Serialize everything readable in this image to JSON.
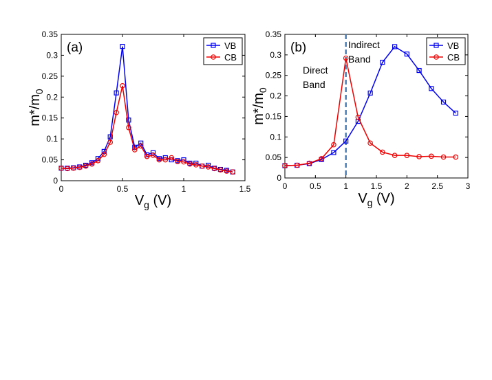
{
  "chart_data": [
    {
      "type": "line",
      "panel_label": "(a)",
      "xlabel": "V",
      "xlabel_sub": "g",
      "xlabel_unit": " (V)",
      "ylabel": "m*/m",
      "ylabel_sub": "0",
      "xlim": [
        0,
        1.5
      ],
      "ylim": [
        0,
        0.35
      ],
      "xticks": [
        0,
        0.5,
        1,
        1.5
      ],
      "xtick_labels": [
        "0",
        "0.5",
        "1",
        "1.5"
      ],
      "yticks": [
        0,
        0.05,
        0.1,
        0.15,
        0.2,
        0.25,
        0.3,
        0.35
      ],
      "ytick_labels": [
        "0",
        "0.05",
        "0.1",
        "0.15",
        "0.2",
        "0.25",
        "0.3",
        "0.35"
      ],
      "legend_position": "top-right",
      "series": [
        {
          "name": "VB",
          "color": "#0000ee",
          "marker": "square",
          "x": [
            0,
            0.05,
            0.1,
            0.15,
            0.2,
            0.25,
            0.3,
            0.35,
            0.4,
            0.45,
            0.5,
            0.55,
            0.6,
            0.65,
            0.7,
            0.75,
            0.8,
            0.85,
            0.9,
            0.95,
            1.0,
            1.05,
            1.1,
            1.15,
            1.2,
            1.25,
            1.3,
            1.35,
            1.4
          ],
          "y": [
            0.03,
            0.03,
            0.031,
            0.033,
            0.037,
            0.043,
            0.053,
            0.07,
            0.105,
            0.21,
            0.321,
            0.145,
            0.08,
            0.09,
            0.062,
            0.067,
            0.053,
            0.055,
            0.05,
            0.048,
            0.05,
            0.042,
            0.042,
            0.035,
            0.037,
            0.03,
            0.027,
            0.025,
            0.021
          ]
        },
        {
          "name": "CB",
          "color": "#ee0000",
          "marker": "circle",
          "x": [
            0,
            0.05,
            0.1,
            0.15,
            0.2,
            0.25,
            0.3,
            0.35,
            0.4,
            0.45,
            0.5,
            0.55,
            0.6,
            0.65,
            0.7,
            0.75,
            0.8,
            0.85,
            0.9,
            0.95,
            1.0,
            1.05,
            1.1,
            1.15,
            1.2,
            1.25,
            1.3,
            1.35,
            1.4
          ],
          "y": [
            0.03,
            0.029,
            0.03,
            0.032,
            0.035,
            0.04,
            0.048,
            0.063,
            0.092,
            0.163,
            0.227,
            0.127,
            0.074,
            0.083,
            0.058,
            0.061,
            0.05,
            0.05,
            0.055,
            0.046,
            0.045,
            0.04,
            0.038,
            0.035,
            0.033,
            0.029,
            0.026,
            0.023,
            0.021
          ]
        }
      ]
    },
    {
      "type": "line",
      "panel_label": "(b)",
      "xlabel": "V",
      "xlabel_sub": "g",
      "xlabel_unit": " (V)",
      "ylabel": "m*/m",
      "ylabel_sub": "0",
      "xlim": [
        0,
        3
      ],
      "ylim": [
        0,
        0.35
      ],
      "xticks": [
        0,
        0.5,
        1,
        1.5,
        2,
        2.5,
        3
      ],
      "xtick_labels": [
        "0",
        "0.5",
        "1",
        "1.5",
        "2",
        "2.5",
        "3"
      ],
      "yticks": [
        0,
        0.05,
        0.1,
        0.15,
        0.2,
        0.25,
        0.3,
        0.35
      ],
      "ytick_labels": [
        "0",
        "0.05",
        "0.1",
        "0.15",
        "0.2",
        "0.25",
        "0.3",
        "0.35"
      ],
      "legend_position": "top-right",
      "vline": {
        "x": 1,
        "color": "#4a7fb5"
      },
      "annotations": [
        {
          "lines": [
            "Direct",
            "Band"
          ]
        },
        {
          "lines": [
            "Indirect",
            "Band"
          ]
        }
      ],
      "series": [
        {
          "name": "VB",
          "color": "#0000ee",
          "marker": "square",
          "x": [
            0,
            0.2,
            0.4,
            0.6,
            0.8,
            1.0,
            1.2,
            1.4,
            1.6,
            1.8,
            2.0,
            2.2,
            2.4,
            2.6,
            2.8
          ],
          "y": [
            0.03,
            0.031,
            0.035,
            0.045,
            0.062,
            0.09,
            0.138,
            0.207,
            0.282,
            0.32,
            0.302,
            0.262,
            0.218,
            0.185,
            0.158
          ]
        },
        {
          "name": "CB",
          "color": "#ee0000",
          "marker": "circle",
          "x": [
            0,
            0.2,
            0.4,
            0.6,
            0.8,
            1.0,
            1.2,
            1.4,
            1.6,
            1.8,
            2.0,
            2.2,
            2.4,
            2.6,
            2.8
          ],
          "y": [
            0.03,
            0.031,
            0.036,
            0.047,
            0.081,
            0.292,
            0.148,
            0.085,
            0.063,
            0.055,
            0.055,
            0.052,
            0.053,
            0.051,
            0.051
          ]
        }
      ]
    }
  ]
}
